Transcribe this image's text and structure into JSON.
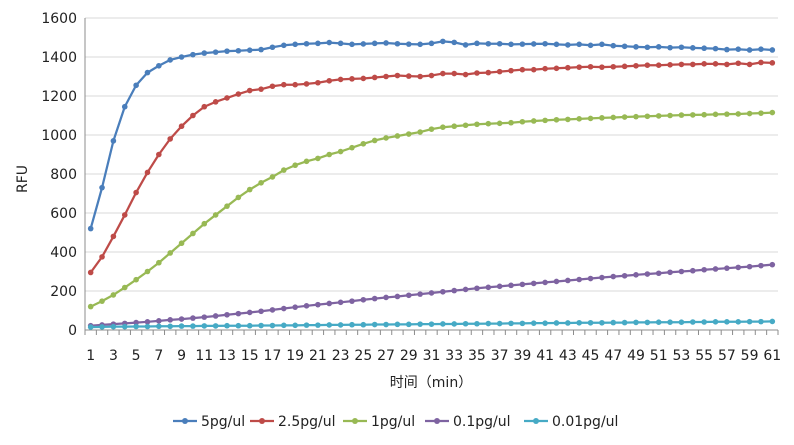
{
  "chart_data": {
    "type": "line",
    "title": "",
    "xlabel": "时间（min）",
    "ylabel": "RFU",
    "ylim": [
      0,
      1600
    ],
    "yticks": [
      0,
      200,
      400,
      600,
      800,
      1000,
      1200,
      1400,
      1600
    ],
    "xlim": [
      1,
      61
    ],
    "xticks": [
      1,
      3,
      5,
      7,
      9,
      11,
      13,
      15,
      17,
      19,
      21,
      23,
      25,
      27,
      29,
      31,
      33,
      35,
      37,
      39,
      41,
      43,
      45,
      47,
      49,
      51,
      53,
      55,
      57,
      59,
      61
    ],
    "grid": "horizontal",
    "legend_position": "bottom",
    "x": [
      1,
      2,
      3,
      4,
      5,
      6,
      7,
      8,
      9,
      10,
      11,
      12,
      13,
      14,
      15,
      16,
      17,
      18,
      19,
      20,
      21,
      22,
      23,
      24,
      25,
      26,
      27,
      28,
      29,
      30,
      31,
      32,
      33,
      34,
      35,
      36,
      37,
      38,
      39,
      40,
      41,
      42,
      43,
      44,
      45,
      46,
      47,
      48,
      49,
      50,
      51,
      52,
      53,
      54,
      55,
      56,
      57,
      58,
      59,
      60,
      61
    ],
    "series": [
      {
        "name": "5pg/ul",
        "color": "#4a7ebb",
        "values": [
          520,
          730,
          970,
          1145,
          1255,
          1320,
          1355,
          1385,
          1400,
          1412,
          1420,
          1425,
          1430,
          1432,
          1435,
          1438,
          1450,
          1460,
          1465,
          1468,
          1470,
          1474,
          1470,
          1465,
          1467,
          1470,
          1472,
          1468,
          1466,
          1465,
          1470,
          1480,
          1475,
          1462,
          1470,
          1468,
          1468,
          1465,
          1466,
          1467,
          1468,
          1465,
          1462,
          1465,
          1460,
          1465,
          1458,
          1455,
          1452,
          1450,
          1452,
          1448,
          1450,
          1447,
          1445,
          1443,
          1438,
          1440,
          1436,
          1440,
          1436
        ]
      },
      {
        "name": "2.5pg/ul",
        "color": "#be4b48",
        "values": [
          295,
          375,
          480,
          590,
          705,
          808,
          900,
          980,
          1045,
          1100,
          1145,
          1170,
          1190,
          1210,
          1228,
          1235,
          1250,
          1258,
          1258,
          1262,
          1268,
          1278,
          1285,
          1288,
          1290,
          1295,
          1300,
          1305,
          1302,
          1300,
          1305,
          1315,
          1315,
          1310,
          1318,
          1320,
          1325,
          1330,
          1335,
          1335,
          1340,
          1342,
          1345,
          1348,
          1350,
          1348,
          1350,
          1352,
          1355,
          1358,
          1358,
          1360,
          1362,
          1362,
          1365,
          1365,
          1362,
          1368,
          1362,
          1372,
          1370
        ]
      },
      {
        "name": "1pg/ul",
        "color": "#98b954",
        "values": [
          120,
          148,
          180,
          218,
          258,
          300,
          345,
          395,
          445,
          495,
          545,
          590,
          635,
          680,
          720,
          755,
          785,
          820,
          845,
          865,
          880,
          900,
          915,
          935,
          955,
          972,
          985,
          995,
          1005,
          1015,
          1030,
          1040,
          1045,
          1050,
          1055,
          1058,
          1060,
          1063,
          1068,
          1072,
          1075,
          1078,
          1080,
          1083,
          1085,
          1088,
          1090,
          1092,
          1094,
          1096,
          1098,
          1100,
          1102,
          1103,
          1104,
          1106,
          1107,
          1108,
          1110,
          1112,
          1115
        ]
      },
      {
        "name": "0.1pg/ul",
        "color": "#7e63a1",
        "values": [
          22,
          26,
          30,
          34,
          38,
          42,
          47,
          52,
          56,
          61,
          66,
          72,
          78,
          84,
          90,
          96,
          103,
          110,
          117,
          124,
          130,
          136,
          142,
          148,
          155,
          161,
          167,
          172,
          178,
          184,
          190,
          196,
          202,
          208,
          214,
          219,
          224,
          229,
          234,
          239,
          244,
          249,
          254,
          259,
          264,
          269,
          274,
          278,
          283,
          287,
          291,
          296,
          300,
          304,
          309,
          313,
          317,
          321,
          325,
          330,
          335
        ]
      },
      {
        "name": "0.01pg/ul",
        "color": "#46aac5",
        "values": [
          15,
          16,
          17,
          17,
          18,
          18,
          19,
          19,
          20,
          20,
          21,
          21,
          22,
          22,
          22,
          23,
          23,
          24,
          24,
          25,
          25,
          26,
          26,
          27,
          27,
          28,
          28,
          29,
          29,
          30,
          30,
          31,
          31,
          32,
          32,
          33,
          33,
          34,
          34,
          35,
          35,
          36,
          36,
          37,
          37,
          37,
          38,
          38,
          39,
          39,
          40,
          40,
          40,
          41,
          41,
          42,
          42,
          42,
          43,
          43,
          44
        ]
      }
    ]
  }
}
